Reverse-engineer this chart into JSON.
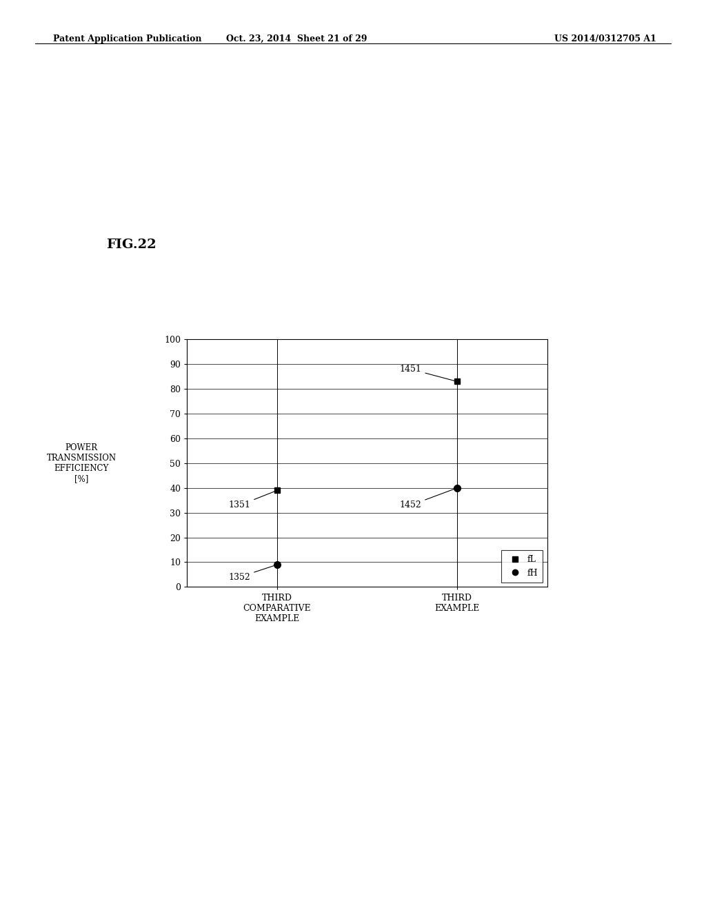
{
  "header_left": "Patent Application Publication",
  "header_mid": "Oct. 23, 2014  Sheet 21 of 29",
  "header_right": "US 2014/0312705 A1",
  "fig_label": "FIG.22",
  "ylabel": "POWER\nTRANSMISSION\nEFFICIENCY\n[%]",
  "categories": [
    "THIRD\nCOMPARATIVE\nEXAMPLE",
    "THIRD\nEXAMPLE"
  ],
  "fL_values": [
    39,
    83
  ],
  "fH_values": [
    9,
    40
  ],
  "ylim": [
    0,
    100
  ],
  "yticks": [
    0,
    10,
    20,
    30,
    40,
    50,
    60,
    70,
    80,
    90,
    100
  ],
  "legend_fL": "fL",
  "legend_fH": "fH",
  "background_color": "#ffffff",
  "marker_color": "#000000",
  "text_color": "#000000",
  "font_size_header": 9,
  "font_size_fig_label": 14,
  "font_size_axis": 8.5,
  "font_size_tick": 9,
  "font_size_annotation": 9,
  "font_size_legend": 9
}
